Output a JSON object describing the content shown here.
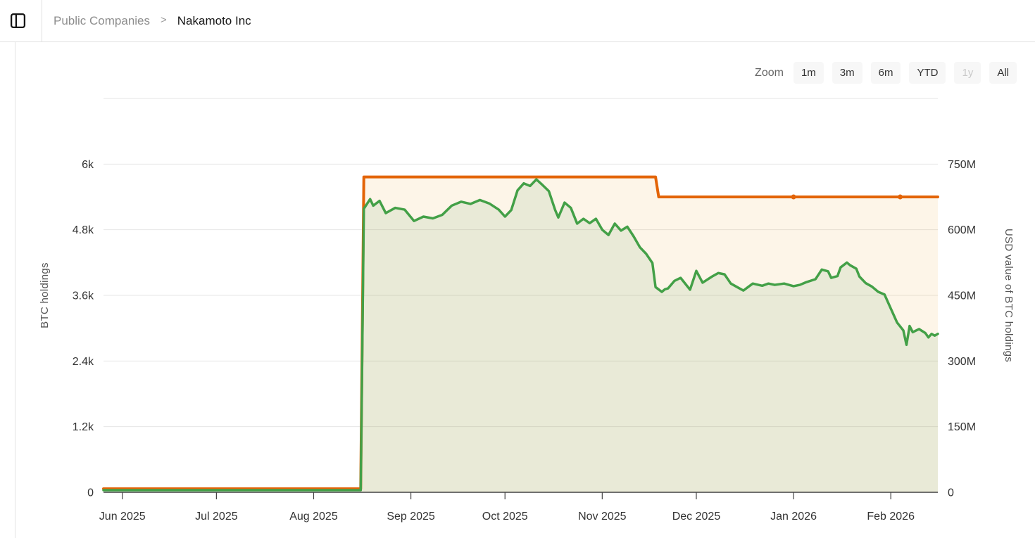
{
  "header": {
    "breadcrumb": {
      "parent": "Public Companies",
      "separator": ">",
      "current": "Nakamoto Inc"
    }
  },
  "toolbar": {
    "zoom_label": "Zoom",
    "buttons": [
      {
        "label": "1m",
        "disabled": false
      },
      {
        "label": "3m",
        "disabled": false
      },
      {
        "label": "6m",
        "disabled": false
      },
      {
        "label": "YTD",
        "disabled": false
      },
      {
        "label": "1y",
        "disabled": true
      },
      {
        "label": "All",
        "disabled": false
      }
    ]
  },
  "chart_data": {
    "type": "area",
    "x_type": "time",
    "x_domain": [
      "2025-05-26",
      "2026-02-16"
    ],
    "x_ticks": [
      {
        "date": "2025-06-01",
        "label": "Jun 2025"
      },
      {
        "date": "2025-07-01",
        "label": "Jul 2025"
      },
      {
        "date": "2025-08-01",
        "label": "Aug 2025"
      },
      {
        "date": "2025-09-01",
        "label": "Sep 2025"
      },
      {
        "date": "2025-10-01",
        "label": "Oct 2025"
      },
      {
        "date": "2025-11-01",
        "label": "Nov 2025"
      },
      {
        "date": "2025-12-01",
        "label": "Dec 2025"
      },
      {
        "date": "2026-01-01",
        "label": "Jan 2026"
      },
      {
        "date": "2026-02-01",
        "label": "Feb 2026"
      }
    ],
    "left_axis": {
      "title": "BTC holdings",
      "max": 7200,
      "ticks": [
        {
          "v": 0,
          "label": "0"
        },
        {
          "v": 1200,
          "label": "1.2k"
        },
        {
          "v": 2400,
          "label": "2.4k"
        },
        {
          "v": 3600,
          "label": "3.6k"
        },
        {
          "v": 4800,
          "label": "4.8k"
        },
        {
          "v": 6000,
          "label": "6k"
        },
        {
          "v": 7200,
          "label": ""
        }
      ]
    },
    "right_axis": {
      "title": "USD value of BTC holdings",
      "max": 900,
      "ticks": [
        {
          "v": 0,
          "label": "0"
        },
        {
          "v": 150,
          "label": "150M"
        },
        {
          "v": 300,
          "label": "300M"
        },
        {
          "v": 450,
          "label": "450M"
        },
        {
          "v": 600,
          "label": "600M"
        },
        {
          "v": 750,
          "label": "750M"
        },
        {
          "v": 900,
          "label": ""
        }
      ]
    },
    "colors": {
      "gridline": "#e6e6e6",
      "axis_line": "#424242",
      "tick_text": "#333333",
      "axis_title": "#555555"
    },
    "series": [
      {
        "id": "btc-holdings",
        "name": "BTC holdings",
        "axis": "left",
        "color": "#e36407",
        "fill": "rgba(240,160,30,0.10)",
        "step": true,
        "markers": [
          "2026-01-01",
          "2026-02-04"
        ],
        "points": [
          [
            "2025-05-26",
            0
          ],
          [
            "2025-08-16",
            0
          ],
          [
            "2025-08-17",
            5765
          ],
          [
            "2025-11-18",
            5765
          ],
          [
            "2025-11-19",
            5400
          ],
          [
            "2026-02-16",
            5400
          ]
        ]
      },
      {
        "id": "usd-value",
        "name": "USD value of BTC holdings",
        "axis": "right",
        "color": "#43a047",
        "fill": "rgba(100,165,100,0.13)",
        "step": false,
        "markers": [],
        "points": [
          [
            "2025-05-26",
            0
          ],
          [
            "2025-08-16",
            0
          ],
          [
            "2025-08-17",
            648
          ],
          [
            "2025-08-19",
            670
          ],
          [
            "2025-08-20",
            655
          ],
          [
            "2025-08-22",
            666
          ],
          [
            "2025-08-24",
            638
          ],
          [
            "2025-08-27",
            650
          ],
          [
            "2025-08-30",
            646
          ],
          [
            "2025-09-02",
            620
          ],
          [
            "2025-09-05",
            630
          ],
          [
            "2025-09-08",
            626
          ],
          [
            "2025-09-11",
            634
          ],
          [
            "2025-09-14",
            655
          ],
          [
            "2025-09-17",
            664
          ],
          [
            "2025-09-20",
            659
          ],
          [
            "2025-09-23",
            668
          ],
          [
            "2025-09-26",
            660
          ],
          [
            "2025-09-29",
            646
          ],
          [
            "2025-10-01",
            630
          ],
          [
            "2025-10-03",
            645
          ],
          [
            "2025-10-05",
            690
          ],
          [
            "2025-10-07",
            706
          ],
          [
            "2025-10-09",
            700
          ],
          [
            "2025-10-11",
            715
          ],
          [
            "2025-10-13",
            702
          ],
          [
            "2025-10-15",
            688
          ],
          [
            "2025-10-17",
            645
          ],
          [
            "2025-10-18",
            628
          ],
          [
            "2025-10-20",
            662
          ],
          [
            "2025-10-22",
            650
          ],
          [
            "2025-10-24",
            614
          ],
          [
            "2025-10-26",
            625
          ],
          [
            "2025-10-28",
            615
          ],
          [
            "2025-10-30",
            625
          ],
          [
            "2025-11-01",
            600
          ],
          [
            "2025-11-03",
            588
          ],
          [
            "2025-11-05",
            614
          ],
          [
            "2025-11-07",
            598
          ],
          [
            "2025-11-09",
            607
          ],
          [
            "2025-11-11",
            585
          ],
          [
            "2025-11-13",
            560
          ],
          [
            "2025-11-15",
            545
          ],
          [
            "2025-11-17",
            524
          ],
          [
            "2025-11-18",
            469
          ],
          [
            "2025-11-20",
            458
          ],
          [
            "2025-11-21",
            464
          ],
          [
            "2025-11-22",
            466
          ],
          [
            "2025-11-24",
            483
          ],
          [
            "2025-11-26",
            490
          ],
          [
            "2025-11-29",
            463
          ],
          [
            "2025-12-01",
            506
          ],
          [
            "2025-12-03",
            479
          ],
          [
            "2025-12-06",
            493
          ],
          [
            "2025-12-08",
            501
          ],
          [
            "2025-12-10",
            498
          ],
          [
            "2025-12-12",
            477
          ],
          [
            "2025-12-14",
            469
          ],
          [
            "2025-12-16",
            461
          ],
          [
            "2025-12-19",
            477
          ],
          [
            "2025-12-22",
            472
          ],
          [
            "2025-12-24",
            477
          ],
          [
            "2025-12-26",
            474
          ],
          [
            "2025-12-29",
            477
          ],
          [
            "2026-01-01",
            471
          ],
          [
            "2026-01-03",
            474
          ],
          [
            "2026-01-05",
            480
          ],
          [
            "2026-01-08",
            487
          ],
          [
            "2026-01-10",
            509
          ],
          [
            "2026-01-12",
            505
          ],
          [
            "2026-01-13",
            490
          ],
          [
            "2026-01-15",
            494
          ],
          [
            "2026-01-16",
            514
          ],
          [
            "2026-01-18",
            525
          ],
          [
            "2026-01-19",
            519
          ],
          [
            "2026-01-21",
            511
          ],
          [
            "2026-01-22",
            493
          ],
          [
            "2026-01-24",
            478
          ],
          [
            "2026-01-26",
            470
          ],
          [
            "2026-01-28",
            458
          ],
          [
            "2026-01-30",
            452
          ],
          [
            "2026-02-01",
            420
          ],
          [
            "2026-02-03",
            388
          ],
          [
            "2026-02-05",
            370
          ],
          [
            "2026-02-06",
            337
          ],
          [
            "2026-02-07",
            380
          ],
          [
            "2026-02-08",
            366
          ],
          [
            "2026-02-10",
            373
          ],
          [
            "2026-02-12",
            364
          ],
          [
            "2026-02-13",
            354
          ],
          [
            "2026-02-14",
            362
          ],
          [
            "2026-02-15",
            358
          ],
          [
            "2026-02-16",
            362
          ]
        ]
      }
    ]
  }
}
